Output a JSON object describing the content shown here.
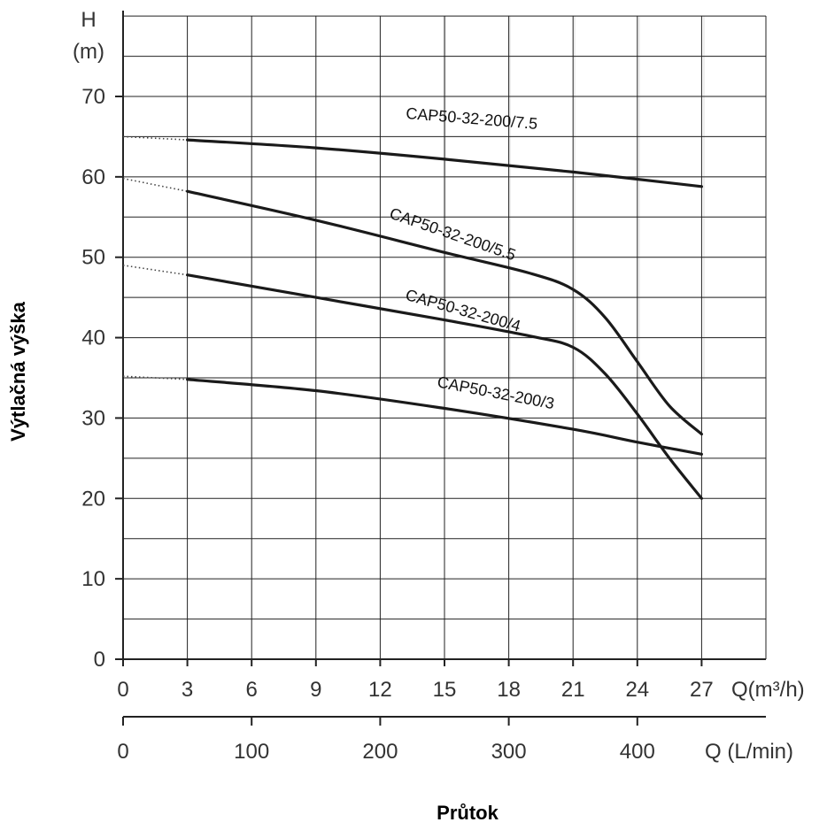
{
  "chart_data": {
    "type": "line",
    "title": "",
    "ylabel": "Výtlačná výška",
    "y_unit_top": "H",
    "y_unit_bottom": "(m)",
    "xlabel": "Průtok",
    "x_unit_m3h": "Q(m³/h)",
    "x_unit_lmin": "Q (L/min)",
    "ylim": [
      0,
      80
    ],
    "xlim": [
      0,
      30
    ],
    "y_ticks": [
      0,
      10,
      20,
      30,
      40,
      50,
      60,
      70
    ],
    "x_ticks_m3h": [
      "0",
      "3",
      "6",
      "9",
      "12",
      "15",
      "18",
      "21",
      "24",
      "27"
    ],
    "x_ticks_lmin": [
      {
        "label": "0",
        "value": 0
      },
      {
        "label": "100",
        "value": 100
      },
      {
        "label": "200",
        "value": 200
      },
      {
        "label": "300",
        "value": 300
      },
      {
        "label": "400",
        "value": 400
      }
    ],
    "series": [
      {
        "name": "CAP50-32-200/7.5",
        "dotted": [
          [
            0,
            65
          ],
          [
            3,
            64.6
          ]
        ],
        "points": [
          [
            3,
            64.6
          ],
          [
            9,
            63.6
          ],
          [
            15,
            62.2
          ],
          [
            21,
            60.6
          ],
          [
            27,
            58.8
          ]
        ]
      },
      {
        "name": "CAP50-32-200/5.5",
        "dotted": [
          [
            0,
            59.8
          ],
          [
            3,
            58.2
          ]
        ],
        "points": [
          [
            3,
            58.2
          ],
          [
            9,
            54.6
          ],
          [
            15,
            50.6
          ],
          [
            19,
            48
          ],
          [
            21,
            46
          ],
          [
            22.5,
            42.5
          ],
          [
            24,
            37
          ],
          [
            25.5,
            31.5
          ],
          [
            27,
            28
          ]
        ]
      },
      {
        "name": "CAP50-32-200/4",
        "dotted": [
          [
            0,
            49
          ],
          [
            3,
            47.8
          ]
        ],
        "points": [
          [
            3,
            47.8
          ],
          [
            9,
            45
          ],
          [
            15,
            42.2
          ],
          [
            19,
            40.2
          ],
          [
            21,
            38.8
          ],
          [
            22.5,
            35.5
          ],
          [
            24,
            30.5
          ],
          [
            25.5,
            25
          ],
          [
            27,
            20
          ]
        ]
      },
      {
        "name": "CAP50-32-200/3",
        "dotted": [
          [
            0,
            35.2
          ],
          [
            3,
            34.8
          ]
        ],
        "points": [
          [
            3,
            34.8
          ],
          [
            9,
            33.4
          ],
          [
            15,
            31.2
          ],
          [
            21,
            28.6
          ],
          [
            24,
            27
          ],
          [
            27,
            25.5
          ]
        ]
      }
    ]
  }
}
